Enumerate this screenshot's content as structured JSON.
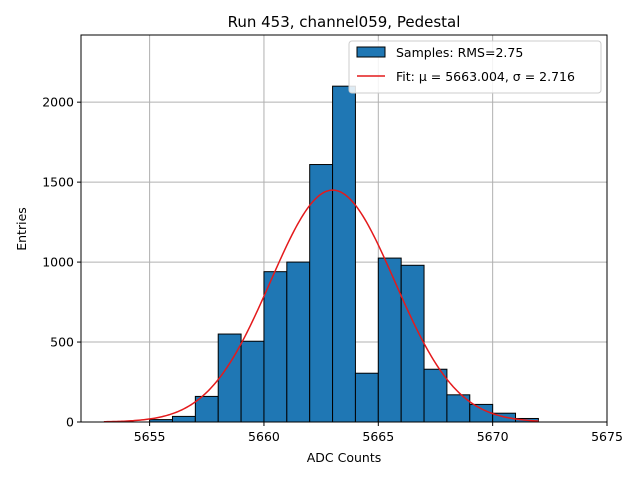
{
  "chart_data": {
    "type": "bar",
    "title": "Run 453, channel059, Pedestal",
    "xlabel": "ADC Counts",
    "ylabel": "Entries",
    "xlim": [
      5652,
      5675
    ],
    "ylim": [
      0,
      2420
    ],
    "xticks": [
      5655,
      5660,
      5665,
      5670,
      5675
    ],
    "yticks": [
      0,
      500,
      1000,
      1500,
      2000
    ],
    "grid": true,
    "legend_position": "top-right",
    "bin_width": 1,
    "bins": [
      {
        "left": 5655,
        "count": 15
      },
      {
        "left": 5656,
        "count": 35
      },
      {
        "left": 5657,
        "count": 160
      },
      {
        "left": 5658,
        "count": 550
      },
      {
        "left": 5659,
        "count": 505
      },
      {
        "left": 5660,
        "count": 940
      },
      {
        "left": 5661,
        "count": 1000
      },
      {
        "left": 5662,
        "count": 1610
      },
      {
        "left": 5663,
        "count": 2100
      },
      {
        "left": 5664,
        "count": 305
      },
      {
        "left": 5665,
        "count": 1025
      },
      {
        "left": 5666,
        "count": 980
      },
      {
        "left": 5667,
        "count": 330
      },
      {
        "left": 5668,
        "count": 170
      },
      {
        "left": 5669,
        "count": 110
      },
      {
        "left": 5670,
        "count": 55
      },
      {
        "left": 5671,
        "count": 22
      }
    ],
    "fit": {
      "mu": 5663.004,
      "sigma": 2.716,
      "amplitude": 1450,
      "x_range": [
        5653,
        5672
      ]
    },
    "colors": {
      "bars": "#1f77b4",
      "bar_edge": "#000000",
      "fit_line": "#e41a1c",
      "grid": "#b0b0b0"
    },
    "legend": [
      {
        "kind": "patch",
        "label": "Samples: RMS=2.75"
      },
      {
        "kind": "line",
        "label": "Fit: μ = 5663.004, σ = 2.716"
      }
    ]
  }
}
